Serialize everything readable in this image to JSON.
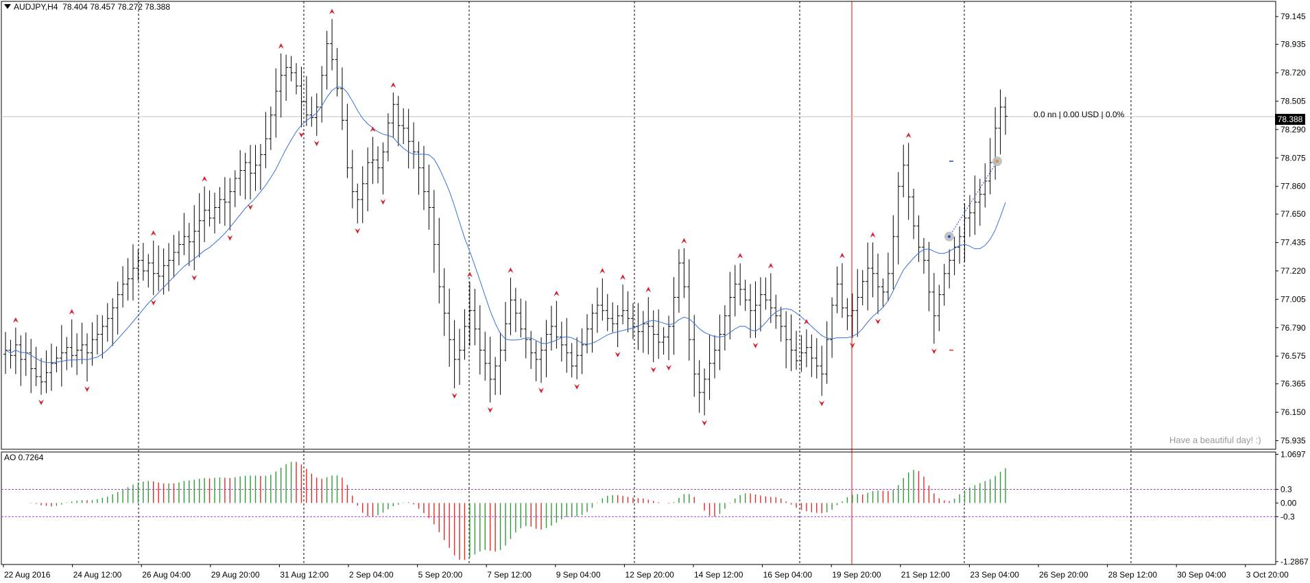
{
  "header": {
    "symbol_timeframe": "AUDJPY,H4",
    "open": "78.404",
    "high": "78.457",
    "low": "78.272",
    "close": "78.388"
  },
  "info_text": "0.0 nn | 0.00 USD | 0.0%",
  "greeting": "Have a beautiful day! :)",
  "current_price_label": "78.388",
  "ao_panel": {
    "label": "AO 0.7264"
  },
  "colors": {
    "bars": "#000000",
    "moving_average": "#3a6fd8",
    "fractal_markers": "#d8202a",
    "ao_up": "#2e9a3a",
    "ao_down": "#e02a2a",
    "ao_levels": "#a040c8",
    "current_time_line": "#ff0000",
    "grid_separators": "#000000"
  },
  "chart_data": [
    {
      "type": "ohlc",
      "title": "AUDJPY,H4",
      "y_ticks": [
        "79.145",
        "78.935",
        "78.720",
        "78.505",
        "78.290",
        "78.075",
        "77.860",
        "77.650",
        "77.435",
        "77.220",
        "77.005",
        "76.790",
        "76.575",
        "76.365",
        "76.150",
        "75.935"
      ],
      "ylim": [
        75.87,
        79.26
      ],
      "x_labels": [
        "22 Aug 2016",
        "24 Aug 12:00",
        "26 Aug 04:00",
        "29 Aug 20:00",
        "31 Aug 12:00",
        "2 Sep 04:00",
        "5 Sep 20:00",
        "7 Sep 12:00",
        "9 Sep 04:00",
        "12 Sep 20:00",
        "14 Sep 12:00",
        "16 Sep 04:00",
        "19 Sep 20:00",
        "21 Sep 12:00",
        "23 Sep 04:00",
        "26 Sep 20:00",
        "28 Sep 12:00",
        "30 Sep 04:00",
        "3 Oct 20:00"
      ],
      "current_price": 78.388,
      "closes": [
        76.62,
        76.58,
        76.66,
        76.55,
        76.6,
        76.48,
        76.42,
        76.38,
        76.45,
        76.52,
        76.56,
        76.6,
        76.64,
        76.58,
        76.62,
        76.66,
        76.6,
        76.7,
        76.74,
        76.8,
        76.86,
        76.94,
        77.04,
        77.12,
        77.16,
        77.24,
        77.3,
        77.22,
        77.28,
        77.2,
        77.18,
        77.26,
        77.3,
        77.36,
        77.42,
        77.48,
        77.44,
        77.52,
        77.6,
        77.68,
        77.62,
        77.7,
        77.76,
        77.74,
        77.82,
        77.92,
        77.98,
        78.04,
        77.96,
        78.02,
        78.1,
        78.22,
        78.4,
        78.58,
        78.7,
        78.76,
        78.72,
        78.62,
        78.5,
        78.4,
        78.38,
        78.46,
        78.7,
        78.94,
        78.82,
        78.6,
        78.36,
        78.0,
        77.82,
        77.76,
        77.88,
        78.04,
        78.06,
        78.0,
        78.12,
        78.34,
        78.48,
        78.32,
        78.3,
        78.2,
        78.12,
        78.0,
        77.82,
        77.7,
        77.42,
        77.1,
        76.9,
        76.7,
        76.55,
        76.62,
        76.8,
        76.92,
        76.78,
        76.62,
        76.52,
        76.4,
        76.5,
        76.62,
        76.82,
        77.0,
        76.9,
        76.78,
        76.7,
        76.6,
        76.55,
        76.62,
        76.74,
        76.8,
        76.72,
        76.66,
        76.6,
        76.5,
        76.58,
        76.66,
        76.78,
        76.9,
        76.96,
        76.92,
        76.86,
        76.82,
        76.88,
        76.92,
        76.86,
        76.8,
        76.76,
        76.82,
        76.8,
        76.74,
        76.68,
        76.72,
        76.8,
        77.02,
        77.28,
        77.1,
        76.7,
        76.44,
        76.3,
        76.4,
        76.52,
        76.62,
        76.74,
        76.88,
        77.02,
        77.12,
        77.08,
        77.0,
        76.92,
        76.96,
        77.04,
        77.0,
        76.94,
        76.88,
        76.8,
        76.7,
        76.62,
        76.54,
        76.6,
        76.64,
        76.56,
        76.5,
        76.44,
        76.7,
        76.96,
        77.12,
        76.94,
        76.88,
        76.92,
        77.02,
        77.14,
        77.24,
        77.2,
        77.1,
        77.06,
        77.2,
        77.48,
        77.86,
        78.02,
        77.78,
        77.56,
        77.4,
        77.3,
        77.06,
        76.88,
        77.04,
        77.2,
        77.3,
        77.4,
        77.48,
        77.62,
        77.66,
        77.74,
        77.8,
        77.9,
        78.04,
        78.3,
        78.46,
        78.39
      ]
    },
    {
      "type": "bar",
      "title": "AO 0.7264",
      "y_ticks": [
        "1.0697",
        "0.3",
        "0.00",
        "-0.3",
        "-1.2867"
      ],
      "ylim": [
        -1.35,
        1.12
      ],
      "levels": [
        0.3,
        -0.3
      ]
    }
  ]
}
